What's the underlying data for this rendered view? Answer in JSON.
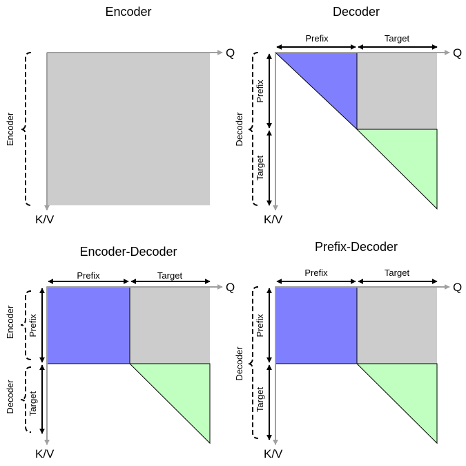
{
  "colors": {
    "prefix_block": "#8080ff",
    "target_block": "#c0ffc0",
    "gray_block": "#cccccc",
    "axis_arrow": "#a0a0a0"
  },
  "panels": [
    {
      "id": "encoder",
      "title": "Encoder",
      "q_label": "Q",
      "kv_label": "K/V",
      "side_brace_labels": [
        "Encoder"
      ],
      "top_labels": [],
      "inner_labels": []
    },
    {
      "id": "decoder",
      "title": "Decoder",
      "q_label": "Q",
      "kv_label": "K/V",
      "side_brace_labels": [
        "Decoder"
      ],
      "top_labels": [
        "Prefix",
        "Target"
      ],
      "inner_labels": [
        "Prefix",
        "Target"
      ]
    },
    {
      "id": "encoder-decoder",
      "title": "Encoder-Decoder",
      "q_label": "Q",
      "kv_label": "K/V",
      "side_brace_labels": [
        "Encoder",
        "Decoder"
      ],
      "top_labels": [
        "Prefix",
        "Target"
      ],
      "inner_labels": [
        "Prefix",
        "Target"
      ]
    },
    {
      "id": "prefix-decoder",
      "title": "Prefix-Decoder",
      "q_label": "Q",
      "kv_label": "K/V",
      "side_brace_labels": [
        "Decoder"
      ],
      "top_labels": [
        "Prefix",
        "Target"
      ],
      "inner_labels": [
        "Prefix",
        "Target"
      ]
    }
  ]
}
